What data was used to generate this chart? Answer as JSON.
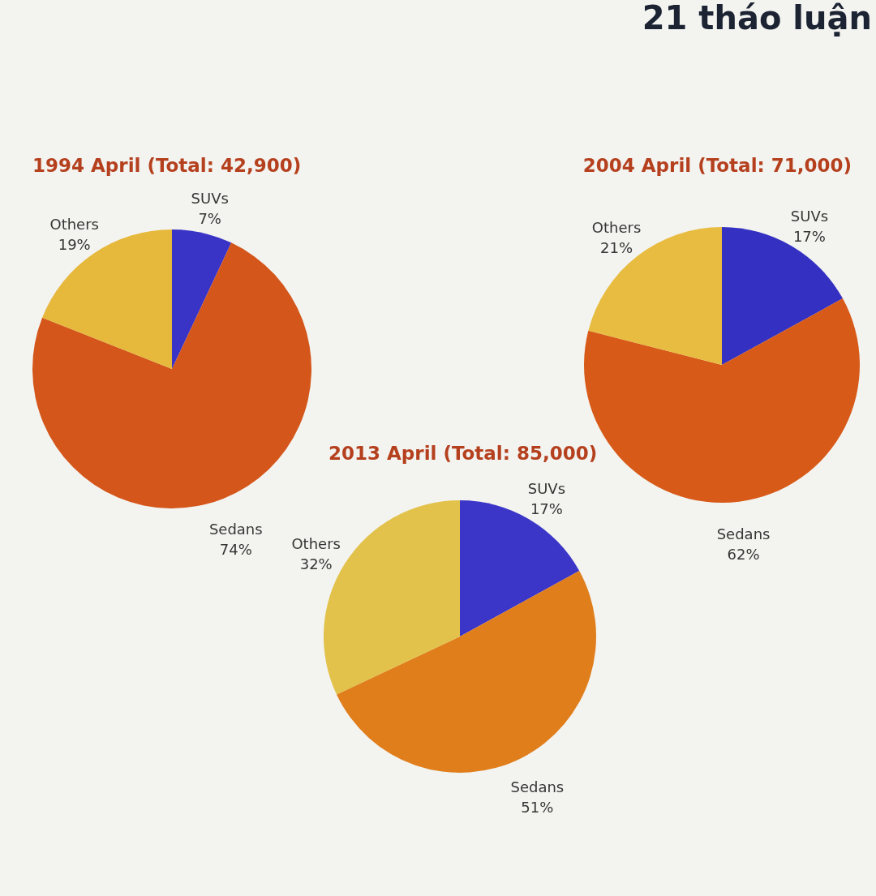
{
  "chart_data": [
    {
      "type": "pie",
      "title": "1994 April (Total: 42,900)",
      "categories": [
        "SUVs",
        "Sedans",
        "Others"
      ],
      "values": [
        7,
        74,
        19
      ],
      "colors": [
        "#3a34c6",
        "#d4561a",
        "#e6b83c"
      ],
      "value_labels": [
        "7%",
        "74%",
        "19%"
      ]
    },
    {
      "type": "pie",
      "title": "2004 April (Total: 71,000)",
      "categories": [
        "SUVs",
        "Sedans",
        "Others"
      ],
      "values": [
        17,
        62,
        21
      ],
      "colors": [
        "#3330c2",
        "#d85a18",
        "#e8bc40"
      ],
      "value_labels": [
        "17%",
        "62%",
        "21%"
      ],
      "annotations": [
        "21 tháo luận"
      ]
    },
    {
      "type": "pie",
      "title": "2013 April (Total: 85,000)",
      "categories": [
        "SUVs",
        "Sedans",
        "Others"
      ],
      "values": [
        17,
        51,
        32
      ],
      "colors": [
        "#3b36c8",
        "#e07e1c",
        "#e2c24a"
      ],
      "value_labels": [
        "17%",
        "51%",
        "32%"
      ]
    }
  ]
}
